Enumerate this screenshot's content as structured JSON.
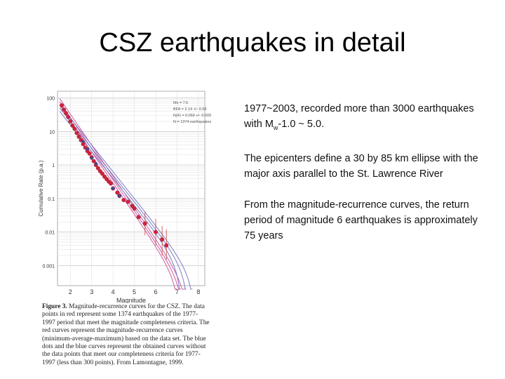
{
  "slide": {
    "title": "CSZ earthquakes in detail",
    "paragraphs": [
      {
        "pre": "1977~2003,  recorded more than 3000 earthquakes with  M",
        "sub": "w",
        "post": "-1.0 ~ 5.0."
      },
      {
        "pre": "The epicenters define a 30 by 85 km ellipse with the major axis parallel to the St. Lawrence River",
        "sub": "",
        "post": ""
      },
      {
        "pre": "From the magnitude-recurrence curves, the return period of magnitude 6 earthquakes is approximately 75 years",
        "sub": "",
        "post": ""
      }
    ]
  },
  "figure": {
    "caption_bold": "Figure 3.",
    "caption_text": " Magnitude-recurrence curves for the CSZ. The data points in red represent some 1374 earthquakes of the 1977-1997 period that meet the magnitude completeness criteria. The red curves represent the magnitude-recurrence curves (minimum-average-maximum) based on the data set. The blue dots and the blue curves represent the obtained curves without the data points that meet our completeness criteria for 1977-1997 (less than 300 points). From Lamontagne, 1999."
  },
  "chart_data": {
    "type": "scatter",
    "title": "",
    "xlabel": "Magnitude",
    "ylabel": "Cumulative Rate (p.a.)",
    "x_ticks": [
      "2",
      "3",
      "4",
      "5",
      "6",
      "7",
      "8"
    ],
    "y_ticks": [
      "100",
      "10",
      "1",
      "0.1",
      "0.01",
      "0.001"
    ],
    "xlim": [
      1.4,
      8.3
    ],
    "ylim_log10": [
      -3.6,
      2.2
    ],
    "y_scale": "log",
    "grid": true,
    "legend_lines": [
      "Mx = 7.5",
      "BFA = 2.14 +/- 0.08",
      "N(4) = 0.069 +/- 0.009",
      "N = 1374 earthquakes"
    ],
    "colors": {
      "red_points": "#d0223c",
      "blue_points": "#3a4fa8",
      "red_curves": "#cf5a9e",
      "blue_curves": "#7c7cc4"
    },
    "series": [
      {
        "name": "red",
        "x": [
          1.6,
          1.7,
          1.8,
          1.9,
          2.0,
          2.1,
          2.2,
          2.3,
          2.4,
          2.5,
          2.6,
          2.7,
          2.8,
          2.9,
          3.0,
          3.1,
          3.2,
          3.3,
          3.4,
          3.5,
          3.6,
          3.7,
          3.8,
          3.9,
          4.0,
          4.2,
          4.3,
          4.5,
          4.7,
          4.9,
          5.0,
          5.2,
          5.5,
          6.0,
          6.3,
          6.5
        ],
        "y": [
          60,
          45,
          35,
          27,
          20,
          15,
          12,
          9,
          7,
          5.5,
          4.2,
          3.3,
          2.6,
          2.2,
          1.7,
          1.3,
          1.0,
          0.8,
          0.65,
          0.55,
          0.45,
          0.38,
          0.32,
          0.28,
          0.2,
          0.15,
          0.12,
          0.09,
          0.08,
          0.06,
          0.05,
          0.028,
          0.018,
          0.01,
          0.006,
          0.004
        ]
      },
      {
        "name": "blue",
        "x": [
          2.6,
          2.8,
          3.0,
          3.2,
          4.0,
          4.3
        ],
        "y": [
          5.0,
          3.0,
          1.6,
          1.1,
          0.2,
          0.12
        ]
      }
    ],
    "curves": [
      {
        "color": "red",
        "b": 0.93,
        "a": 3.18,
        "mmax": 7.1
      },
      {
        "color": "red",
        "b": 0.93,
        "a": 3.28,
        "mmax": 7.3
      },
      {
        "color": "red",
        "b": 0.93,
        "a": 3.38,
        "mmax": 7.5
      },
      {
        "color": "blue",
        "b": 0.8,
        "a": 2.8,
        "mmax": 7.2
      },
      {
        "color": "blue",
        "b": 0.8,
        "a": 2.9,
        "mmax": 7.5
      },
      {
        "color": "blue",
        "b": 0.8,
        "a": 3.0,
        "mmax": 7.8
      }
    ],
    "error_bars": [
      {
        "x": 5.5,
        "lo": 0.008,
        "hi": 0.04
      },
      {
        "x": 6.0,
        "lo": 0.004,
        "hi": 0.025
      },
      {
        "x": 6.3,
        "lo": 0.002,
        "hi": 0.015
      },
      {
        "x": 6.5,
        "lo": 0.0015,
        "hi": 0.012
      }
    ]
  }
}
